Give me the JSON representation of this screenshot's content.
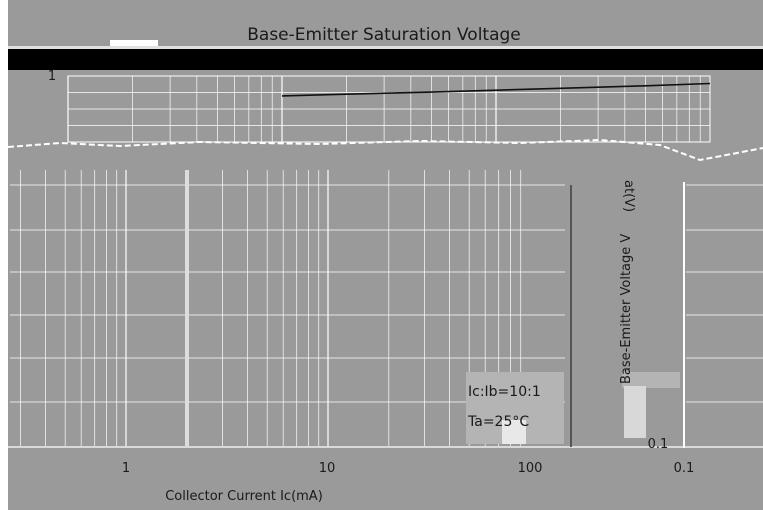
{
  "chart_data": {
    "type": "line",
    "title": "Base-Emitter Saturation Voltage",
    "xlabel": "Collector Current   Ic(mA)",
    "ylabel": "Base-Emitter Voltage   V",
    "ylabel_suffix": "at(V)",
    "x_scale": "log",
    "y_scale": "log",
    "xlim": [
      0.1,
      1000
    ],
    "ylim": [
      0.1,
      1
    ],
    "x_ticks": [
      {
        "value": 1,
        "label": "1"
      },
      {
        "value": 10,
        "label": "10"
      },
      {
        "value": 100,
        "label": "100"
      }
    ],
    "x_tick_right": "0.1",
    "y_ticks": [
      {
        "value": 1,
        "label": "1"
      },
      {
        "value": 0.1,
        "label": "0.1"
      }
    ],
    "grid": true,
    "series": [
      {
        "x": [
          10,
          20,
          50,
          100,
          200,
          500,
          1000
        ],
        "y": [
          0.5,
          0.53,
          0.57,
          0.61,
          0.65,
          0.71,
          0.77
        ]
      }
    ],
    "annotations": [
      "Ic:Ib=10:1",
      "Ta=25°C"
    ],
    "colors": {
      "background": "#9a9a9a",
      "line": "#111111",
      "grid": "#ffffff"
    }
  }
}
